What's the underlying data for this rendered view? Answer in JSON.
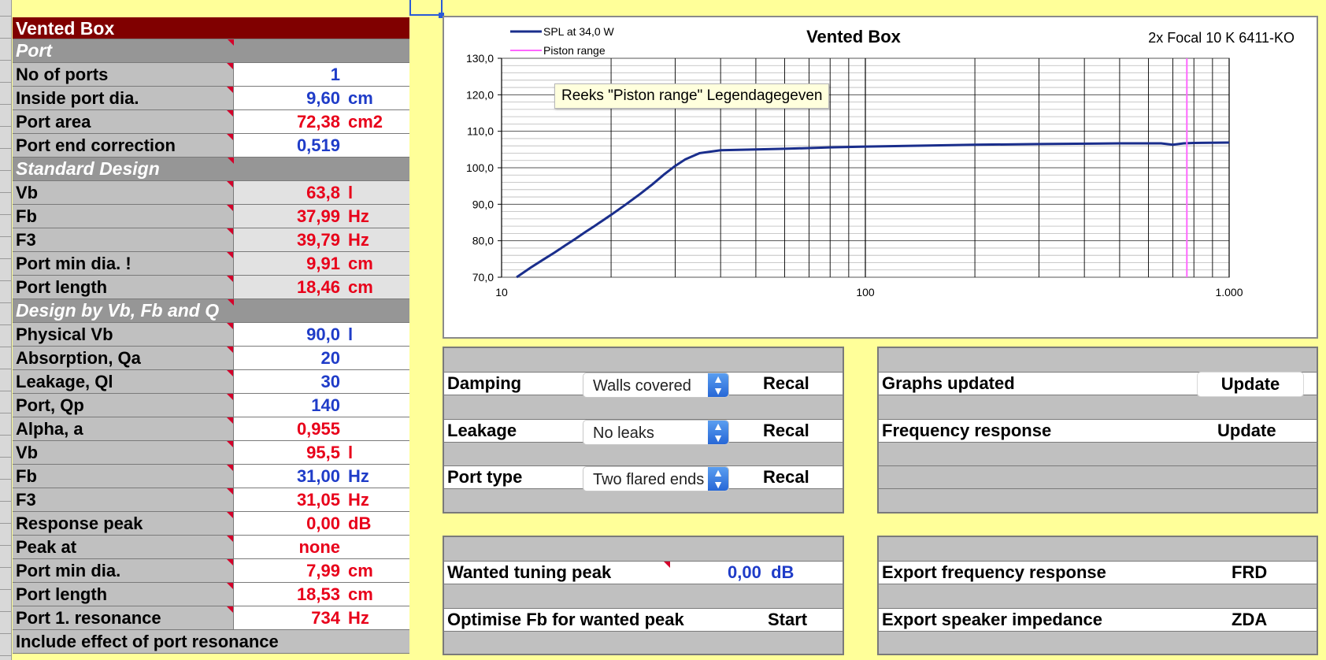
{
  "left": {
    "title": "Vented Box",
    "port_section": "Port",
    "port_rows": [
      {
        "label": "No of ports",
        "value": "1",
        "unit": ""
      },
      {
        "label": "Inside port dia.",
        "value": "9,60",
        "unit": "cm"
      },
      {
        "label": "Port area",
        "value": "72,38",
        "unit": "cm2"
      },
      {
        "label": "Port end correction",
        "value": "0,519",
        "unit": ""
      }
    ],
    "standard_section": "Standard Design",
    "standard_rows": [
      {
        "label": "Vb",
        "value": "63,8",
        "unit": "l"
      },
      {
        "label": "Fb",
        "value": "37,99",
        "unit": "Hz"
      },
      {
        "label": "F3",
        "value": "39,79",
        "unit": "Hz"
      },
      {
        "label": "Port min dia. !",
        "value": "9,91",
        "unit": "cm"
      },
      {
        "label": "Port length",
        "value": "18,46",
        "unit": "cm"
      }
    ],
    "design_section": "Design by Vb, Fb and Q",
    "design_rows": [
      {
        "label": "Physical Vb",
        "value": "90,0",
        "unit": "l"
      },
      {
        "label": "Absorption, Qa",
        "value": "20",
        "unit": ""
      },
      {
        "label": "Leakage, Ql",
        "value": "30",
        "unit": ""
      },
      {
        "label": "Port, Qp",
        "value": "140",
        "unit": ""
      },
      {
        "label": "Alpha, a",
        "value": "0,955",
        "unit": ""
      },
      {
        "label": "Vb",
        "value": "95,5",
        "unit": "l"
      },
      {
        "label": "Fb",
        "value": "31,00",
        "unit": "Hz"
      },
      {
        "label": "F3",
        "value": "31,05",
        "unit": "Hz"
      },
      {
        "label": "Response peak",
        "value": "0,00",
        "unit": "dB"
      },
      {
        "label": "Peak at",
        "value": "none",
        "unit": ""
      },
      {
        "label": "Port min dia.",
        "value": "7,99",
        "unit": "cm"
      },
      {
        "label": "Port length",
        "value": "18,53",
        "unit": "cm"
      },
      {
        "label": "Port 1. resonance",
        "value": "734",
        "unit": "Hz"
      }
    ],
    "footer_row": "Include effect of port resonance"
  },
  "colors": {
    "background": "#ffff99",
    "title_bg": "#800000",
    "section_bg": "#969696",
    "label_bg": "#c0c0c0",
    "input_blue": "#1f3cc8",
    "output_red": "#e8001a",
    "spl_line": "#1a2e8c",
    "piston_line": "#ff66ff"
  },
  "chart_data": {
    "type": "line",
    "title": "Vented Box",
    "subtitle": "2x Focal 10 K 6411-KO",
    "xscale": "log",
    "xlim": [
      10,
      1000
    ],
    "ylim": [
      70,
      130
    ],
    "y_ticks": [
      "70,0",
      "80,0",
      "90,0",
      "100,0",
      "110,0",
      "120,0",
      "130,0"
    ],
    "x_ticks": [
      "10",
      "100",
      "1.000"
    ],
    "grid": true,
    "legend_position": "top-left",
    "series": [
      {
        "name": "SPL at 34,0 W",
        "color": "#1a2e8c",
        "x": [
          11,
          12,
          13,
          14,
          15,
          16,
          17,
          18,
          19,
          20,
          22,
          24,
          26,
          28,
          30,
          32,
          35,
          40,
          50,
          60,
          70,
          80,
          100,
          150,
          200,
          300,
          500,
          650,
          700,
          750,
          800,
          1000
        ],
        "y": [
          70,
          72.6,
          74.8,
          76.8,
          78.8,
          80.6,
          82.4,
          84.0,
          85.6,
          87.1,
          90.0,
          92.8,
          95.5,
          98.2,
          100.5,
          102.3,
          104.0,
          104.8,
          105.0,
          105.2,
          105.4,
          105.6,
          105.8,
          106.1,
          106.3,
          106.5,
          106.7,
          106.7,
          106.3,
          106.7,
          106.8,
          106.9
        ]
      },
      {
        "name": "Piston range",
        "color": "#ff66ff",
        "x": [
          765,
          765
        ],
        "y": [
          70,
          130
        ]
      }
    ]
  },
  "tooltip": "Reeks \"Piston range\" Legendagegeven",
  "controls": {
    "damping_label": "Damping",
    "damping_value": "Walls covered",
    "leakage_label": "Leakage",
    "leakage_value": "No leaks",
    "port_type_label": "Port type",
    "port_type_value": "Two flared ends",
    "recal": "Recal",
    "graphs_updated": "Graphs updated",
    "frequency_response": "Frequency response",
    "update": "Update",
    "wanted_peak_label": "Wanted tuning peak",
    "wanted_peak_value": "0,00",
    "wanted_peak_unit": "dB",
    "optimise_label": "Optimise Fb for wanted peak",
    "start": "Start",
    "export_fr_label": "Export frequency response",
    "export_fr_btn": "FRD",
    "export_z_label": "Export speaker impedance",
    "export_z_btn": "ZDA"
  }
}
